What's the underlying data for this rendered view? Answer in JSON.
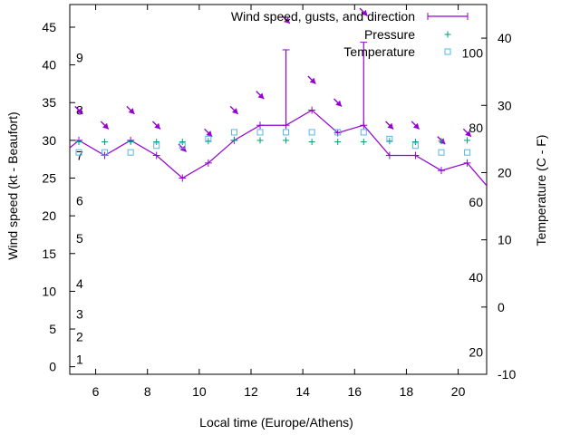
{
  "chart_data": {
    "type": "line",
    "xlabel": "Local time (Europe/Athens)",
    "ylabel_left": "Wind speed (kt - Beaufort)",
    "ylabel_right": "Temperature (C - F)",
    "xlim": [
      5,
      21.1
    ],
    "ylim": [
      -1,
      48
    ],
    "y2lim": [
      -10,
      45
    ],
    "x_ticks": [
      6,
      8,
      10,
      12,
      14,
      16,
      18,
      20
    ],
    "y_ticks": [
      0,
      5,
      10,
      15,
      20,
      25,
      30,
      35,
      40,
      45
    ],
    "y2_ticks": [
      -10,
      0,
      10,
      20,
      30,
      40
    ],
    "beaufort_labels": [
      {
        "label": "1",
        "kt": 1
      },
      {
        "label": "2",
        "kt": 4
      },
      {
        "label": "3",
        "kt": 7
      },
      {
        "label": "4",
        "kt": 11
      },
      {
        "label": "5",
        "kt": 17
      },
      {
        "label": "6",
        "kt": 22
      },
      {
        "label": "7",
        "kt": 28
      },
      {
        "label": "8",
        "kt": 34
      },
      {
        "label": "9",
        "kt": 41
      }
    ],
    "fahrenheit_labels": [
      {
        "label": "20",
        "c": -6.7
      },
      {
        "label": "40",
        "c": 4.4
      },
      {
        "label": "60",
        "c": 15.6
      },
      {
        "label": "80",
        "c": 26.7
      },
      {
        "label": "100",
        "c": 37.8
      }
    ],
    "legend_position": "top-right",
    "series": [
      {
        "name": "Wind speed, gusts, and direction",
        "color": "#9400d3",
        "x": [
          5.0,
          5.35,
          6.35,
          7.35,
          8.35,
          9.35,
          10.35,
          11.35,
          12.35,
          13.35,
          14.35,
          15.35,
          16.35,
          17.35,
          18.35,
          19.35,
          20.35,
          21.1
        ],
        "y": [
          29,
          30,
          28,
          30,
          28,
          25,
          27,
          30,
          32,
          32,
          34,
          31,
          32,
          28,
          28,
          26,
          27,
          24
        ],
        "gusts": [
          {
            "x": 13.35,
            "y": 42
          },
          {
            "x": 16.35,
            "y": 43
          }
        ],
        "direction_arrows": [
          {
            "x": 5.35,
            "y": 34,
            "angle_deg": 45
          },
          {
            "x": 6.35,
            "y": 32,
            "angle_deg": 45
          },
          {
            "x": 7.35,
            "y": 34,
            "angle_deg": 45
          },
          {
            "x": 8.35,
            "y": 32,
            "angle_deg": 45
          },
          {
            "x": 9.35,
            "y": 29,
            "angle_deg": 45
          },
          {
            "x": 10.35,
            "y": 31,
            "angle_deg": 45
          },
          {
            "x": 11.35,
            "y": 34,
            "angle_deg": 45
          },
          {
            "x": 12.35,
            "y": 36,
            "angle_deg": 45
          },
          {
            "x": 13.35,
            "y": 46,
            "angle_deg": 45
          },
          {
            "x": 14.35,
            "y": 38,
            "angle_deg": 45
          },
          {
            "x": 15.35,
            "y": 35,
            "angle_deg": 45
          },
          {
            "x": 16.35,
            "y": 47,
            "angle_deg": 45
          },
          {
            "x": 17.35,
            "y": 32,
            "angle_deg": 45
          },
          {
            "x": 18.35,
            "y": 32,
            "angle_deg": 45
          },
          {
            "x": 19.35,
            "y": 30,
            "angle_deg": 45
          },
          {
            "x": 20.35,
            "y": 31,
            "angle_deg": 45
          }
        ]
      },
      {
        "name": "Pressure",
        "color": "#009e73",
        "marker": "plus",
        "axis": "left",
        "x": [
          5.35,
          6.35,
          7.35,
          8.35,
          9.35,
          10.35,
          11.35,
          12.35,
          13.35,
          14.35,
          15.35,
          16.35,
          17.35,
          18.35,
          19.35,
          20.35
        ],
        "y": [
          29.8,
          29.8,
          29.8,
          29.8,
          29.8,
          29.9,
          30,
          30,
          30,
          29.8,
          29.8,
          29.8,
          29.9,
          29.8,
          29.9,
          30
        ]
      },
      {
        "name": "Temperature",
        "color": "#56b4e9",
        "marker": "square",
        "axis": "right",
        "x": [
          5.35,
          6.35,
          7.35,
          8.35,
          9.35,
          10.35,
          11.35,
          12.35,
          13.35,
          14.35,
          15.35,
          16.35,
          17.35,
          18.35,
          19.35,
          20.35
        ],
        "y": [
          23,
          23,
          23,
          24,
          24,
          25,
          26,
          26,
          26,
          26,
          26,
          26,
          25,
          24,
          23,
          23
        ]
      }
    ]
  }
}
